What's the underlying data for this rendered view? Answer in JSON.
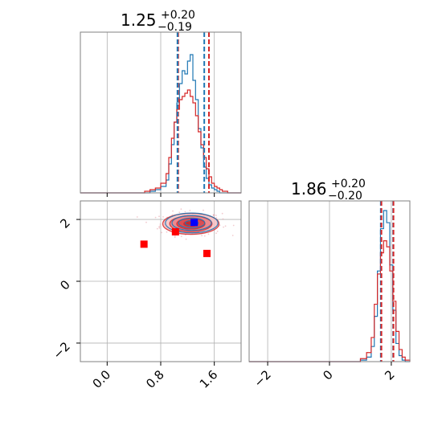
{
  "chart_data": [
    {
      "panel": "marginal-1",
      "type": "histogram",
      "title": {
        "value": "1.25",
        "sup": "+0.20",
        "sub": "−0.19"
      },
      "xlim": [
        -0.4,
        2.0
      ],
      "series": [
        {
          "name": "",
          "color": "#1f77b4",
          "bins": [
            -0.4,
            -0.32,
            -0.24,
            -0.16,
            -0.08,
            0.0,
            0.08,
            0.16,
            0.24,
            0.32,
            0.4,
            0.48,
            0.56,
            0.64,
            0.72,
            0.8,
            0.88,
            0.92,
            0.96,
            1.0,
            1.04,
            1.08,
            1.12,
            1.16,
            1.2,
            1.24,
            1.28,
            1.32,
            1.36,
            1.4,
            1.44,
            1.48,
            1.52,
            1.56,
            1.6,
            1.64,
            1.68,
            1.72,
            1.8,
            2.0
          ],
          "counts": [
            0,
            0,
            0,
            0,
            0,
            0,
            0,
            0,
            0,
            0,
            0,
            0,
            0,
            1,
            2,
            4,
            8,
            18,
            30,
            44,
            56,
            68,
            76,
            74,
            82,
            86,
            70,
            58,
            40,
            28,
            16,
            9,
            5,
            3,
            2,
            1,
            0,
            0,
            0
          ]
        },
        {
          "name": "",
          "color": "#d62728",
          "bins": [
            -0.4,
            -0.32,
            -0.24,
            -0.16,
            -0.08,
            0.0,
            0.08,
            0.16,
            0.24,
            0.32,
            0.4,
            0.48,
            0.56,
            0.64,
            0.72,
            0.8,
            0.88,
            0.92,
            0.96,
            1.0,
            1.04,
            1.08,
            1.12,
            1.16,
            1.2,
            1.24,
            1.28,
            1.32,
            1.36,
            1.4,
            1.44,
            1.48,
            1.52,
            1.56,
            1.6,
            1.64,
            1.68,
            1.72,
            1.8,
            2.0
          ],
          "counts": [
            0,
            0,
            0,
            0,
            0,
            0,
            0,
            0,
            0,
            0,
            0,
            0,
            1,
            2,
            3,
            6,
            12,
            22,
            34,
            44,
            52,
            58,
            60,
            62,
            64,
            60,
            56,
            48,
            38,
            30,
            22,
            15,
            10,
            6,
            4,
            3,
            2,
            1,
            0
          ]
        }
      ],
      "quantile_lines": [
        {
          "x": 1.06,
          "color": "#d62728"
        },
        {
          "x": 1.05,
          "color": "#1f77b4"
        },
        {
          "x": 1.45,
          "color": "#1f77b4"
        },
        {
          "x": 1.52,
          "color": "#d62728"
        }
      ]
    },
    {
      "panel": "joint",
      "type": "contour-scatter",
      "xlim": [
        -0.4,
        2.0
      ],
      "ylim": [
        -2.6,
        2.6
      ],
      "xticks": [
        "0.0",
        "0.8",
        "1.6"
      ],
      "yticks": [
        "2",
        "0",
        "−2"
      ],
      "grid": true,
      "center": [
        1.25,
        1.86
      ],
      "spread": [
        0.2,
        0.2
      ],
      "markers": [
        {
          "x": 0.55,
          "y": 1.2,
          "color": "#ff0000"
        },
        {
          "x": 1.02,
          "y": 1.6,
          "color": "#ff0000"
        },
        {
          "x": 1.49,
          "y": 0.9,
          "color": "#ff0000"
        },
        {
          "x": 1.3,
          "y": 1.9,
          "color": "#0000ff"
        }
      ],
      "contour_colors": [
        "#1f77b4",
        "#d62728"
      ]
    },
    {
      "panel": "marginal-2",
      "type": "histogram",
      "title": {
        "value": "1.86",
        "sup": "+0.20",
        "sub": "−0.20"
      },
      "xlim": [
        -2.6,
        2.6
      ],
      "xticks": [
        "−2",
        "0",
        "2"
      ],
      "grid": true,
      "series": [
        {
          "name": "",
          "color": "#1f77b4",
          "bins": [
            -2.6,
            1.0,
            1.2,
            1.35,
            1.45,
            1.55,
            1.65,
            1.75,
            1.85,
            1.95,
            2.05,
            2.15,
            2.25,
            2.35,
            2.45,
            2.6
          ],
          "counts": [
            0,
            1,
            3,
            10,
            30,
            60,
            88,
            100,
            92,
            64,
            34,
            12,
            4,
            1,
            0
          ]
        },
        {
          "name": "",
          "color": "#d62728",
          "bins": [
            -2.6,
            1.0,
            1.2,
            1.35,
            1.45,
            1.55,
            1.65,
            1.75,
            1.85,
            1.95,
            2.05,
            2.15,
            2.25,
            2.35,
            2.45,
            2.6
          ],
          "counts": [
            0,
            2,
            6,
            16,
            38,
            58,
            72,
            80,
            76,
            60,
            40,
            20,
            8,
            3,
            1
          ]
        }
      ],
      "quantile_lines": [
        {
          "x": 1.66,
          "color": "#1f77b4"
        },
        {
          "x": 1.68,
          "color": "#d62728"
        },
        {
          "x": 2.06,
          "color": "#1f77b4"
        },
        {
          "x": 2.07,
          "color": "#d62728"
        }
      ]
    }
  ]
}
